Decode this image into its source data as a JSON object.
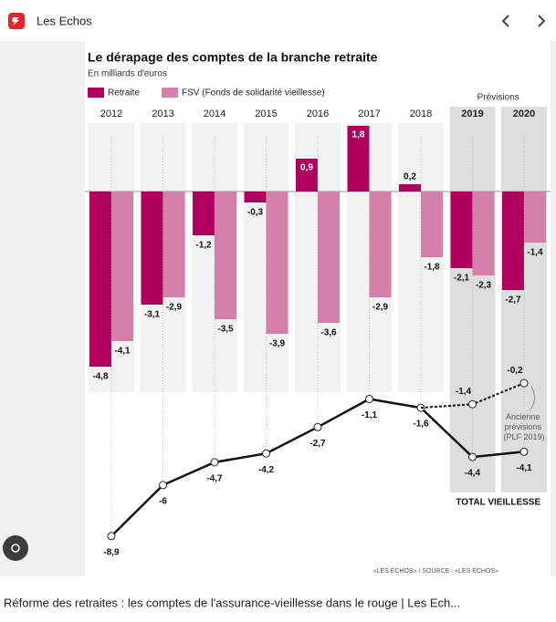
{
  "header": {
    "site": "Les Echos"
  },
  "chart_data": {
    "type": "combo",
    "title": "Le dérapage des comptes de la branche retraite",
    "subtitle": "En milliards d'euros",
    "forecast_label": "Prévisions",
    "categories": [
      "2012",
      "2013",
      "2014",
      "2015",
      "2016",
      "2017",
      "2018",
      "2019",
      "2020"
    ],
    "forecast": [
      false,
      false,
      false,
      false,
      false,
      false,
      false,
      true,
      true
    ],
    "series": [
      {
        "name": "Retraite",
        "color": "#b0005e",
        "values": [
          -4.8,
          -3.1,
          -1.2,
          -0.3,
          0.9,
          1.8,
          0.2,
          -2.1,
          -2.7
        ],
        "value_labels": [
          "-4,8",
          "-3,1",
          "-1,2",
          "-0,3",
          "0,9",
          "1,8",
          "0,2",
          "-2,1",
          "-2,7"
        ]
      },
      {
        "name": "FSV (Fonds de solidarité vieillesse)",
        "color": "#d580a8",
        "values": [
          -4.1,
          -2.9,
          -3.5,
          -3.9,
          -3.6,
          -2.9,
          -1.8,
          -2.3,
          -1.4
        ],
        "value_labels": [
          "-4,1",
          "-2,9",
          "-3,5",
          "-3,9",
          "-3,6",
          "-2,9",
          "-1,8",
          "-2,3",
          "-1,4"
        ]
      },
      {
        "name": "TOTAL VIEILLESSE",
        "axis": "y2",
        "line": true,
        "color": "#111111",
        "values": [
          -8.9,
          -6,
          -4.7,
          -4.2,
          -2.7,
          -1.1,
          -1.6,
          -4.4,
          -4.1
        ],
        "value_labels": [
          "-8,9",
          "-6",
          "-4,7",
          "-4,2",
          "-2,7",
          "-1,1",
          "-1,6",
          "-4,4",
          "-4,1"
        ]
      },
      {
        "name": "Ancienne prévisions (PLF 2019)",
        "axis": "y2",
        "line": true,
        "dashed": true,
        "color": "#111111",
        "values": [
          null,
          null,
          null,
          null,
          null,
          null,
          -1.6,
          -1.4,
          -0.2
        ],
        "value_labels": [
          null,
          null,
          null,
          null,
          null,
          null,
          null,
          "-1,4",
          "-0,2"
        ]
      }
    ],
    "ylim": [
      -5.5,
      1.875
    ],
    "y2lim": [
      -10,
      1
    ],
    "legend": "top-left",
    "source": "«LES ÉCHOS» / SOURCE : «LES ÉCHOS»"
  },
  "caption": "Réforme des retraites : les comptes de l'assurance-vieillesse dans le rouge | Les Ech..."
}
